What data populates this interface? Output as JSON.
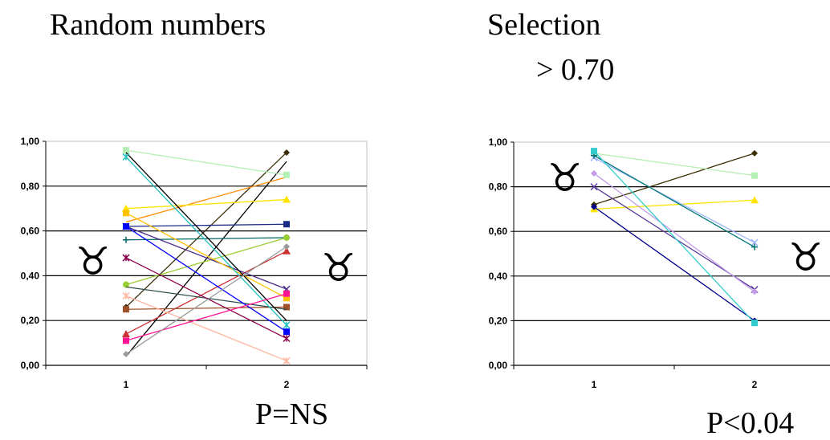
{
  "heading_left": "Random numbers",
  "heading_right_line1": "Selection",
  "heading_right_line2": "> 0.70",
  "symbol": "♉",
  "pvalue_left": "P=NS",
  "pvalue_right": "P<0.04",
  "chart_data": [
    {
      "type": "line",
      "categories": [
        "1",
        "2"
      ],
      "ylim": [
        0,
        1
      ],
      "yticks": [
        "0,00",
        "0,20",
        "0,40",
        "0,60",
        "0,80",
        "1,00"
      ],
      "grid": true,
      "annotation": "P=NS",
      "series": [
        {
          "color": "#3b2d0a",
          "marker": "diamond",
          "values": [
            0.26,
            0.95
          ]
        },
        {
          "color": "#000000",
          "marker": "none",
          "values": [
            0.04,
            0.91
          ]
        },
        {
          "color": "#ff8c00",
          "marker": "none",
          "values": [
            0.64,
            0.84
          ]
        },
        {
          "color": "#b4f0b4",
          "marker": "square",
          "values": [
            0.96,
            0.85
          ]
        },
        {
          "color": "#ffe400",
          "marker": "triangle",
          "values": [
            0.7,
            0.74
          ]
        },
        {
          "color": "#1a2b8a",
          "marker": "square",
          "values": [
            0.62,
            0.63
          ]
        },
        {
          "color": "#006666",
          "marker": "plus",
          "values": [
            0.56,
            0.57
          ]
        },
        {
          "color": "#cc3333",
          "marker": "triangle",
          "values": [
            0.14,
            0.51
          ]
        },
        {
          "color": "#9acd32",
          "marker": "circle",
          "values": [
            0.36,
            0.57
          ]
        },
        {
          "color": "#4b2a8a",
          "marker": "cross",
          "values": [
            0.62,
            0.34
          ]
        },
        {
          "color": "#ffc000",
          "marker": "square",
          "values": [
            0.68,
            0.3
          ]
        },
        {
          "color": "#a0522d",
          "marker": "square",
          "values": [
            0.25,
            0.26
          ]
        },
        {
          "color": "#2f4f4f",
          "marker": "none",
          "values": [
            0.35,
            0.25
          ]
        },
        {
          "color": "#000000",
          "marker": "none",
          "values": [
            0.95,
            0.2
          ]
        },
        {
          "color": "#20c0c0",
          "marker": "star",
          "values": [
            0.93,
            0.18
          ]
        },
        {
          "color": "#0000ff",
          "marker": "square",
          "values": [
            0.62,
            0.15
          ]
        },
        {
          "color": "#8b004b",
          "marker": "star",
          "values": [
            0.48,
            0.12
          ]
        },
        {
          "color": "#ffb6a0",
          "marker": "star",
          "values": [
            0.31,
            0.02
          ]
        },
        {
          "color": "#ff1493",
          "marker": "square",
          "values": [
            0.11,
            0.32
          ]
        },
        {
          "color": "#999999",
          "marker": "diamond",
          "values": [
            0.05,
            0.53
          ]
        }
      ]
    },
    {
      "type": "line",
      "categories": [
        "1",
        "2"
      ],
      "ylim": [
        0,
        1
      ],
      "yticks": [
        "0,00",
        "0,20",
        "0,40",
        "0,60",
        "0,80",
        "1,00"
      ],
      "grid": true,
      "annotation": "P<0.04",
      "series": [
        {
          "color": "#3b3000",
          "marker": "diamond",
          "values": [
            0.72,
            0.95
          ]
        },
        {
          "color": "#b4f0b4",
          "marker": "square",
          "values": [
            0.95,
            0.85
          ]
        },
        {
          "color": "#ffe400",
          "marker": "triangle",
          "values": [
            0.7,
            0.74
          ]
        },
        {
          "color": "#9fb4ff",
          "marker": "cross",
          "values": [
            0.93,
            0.55
          ]
        },
        {
          "color": "#007777",
          "marker": "plus",
          "values": [
            0.94,
            0.53
          ]
        },
        {
          "color": "#5a3a9a",
          "marker": "cross",
          "values": [
            0.8,
            0.34
          ]
        },
        {
          "color": "#c39be6",
          "marker": "diamond",
          "values": [
            0.86,
            0.33
          ]
        },
        {
          "color": "#00008b",
          "marker": "diamond",
          "values": [
            0.71,
            0.2
          ]
        },
        {
          "color": "#33cccc",
          "marker": "square",
          "values": [
            0.96,
            0.19
          ]
        }
      ]
    }
  ]
}
